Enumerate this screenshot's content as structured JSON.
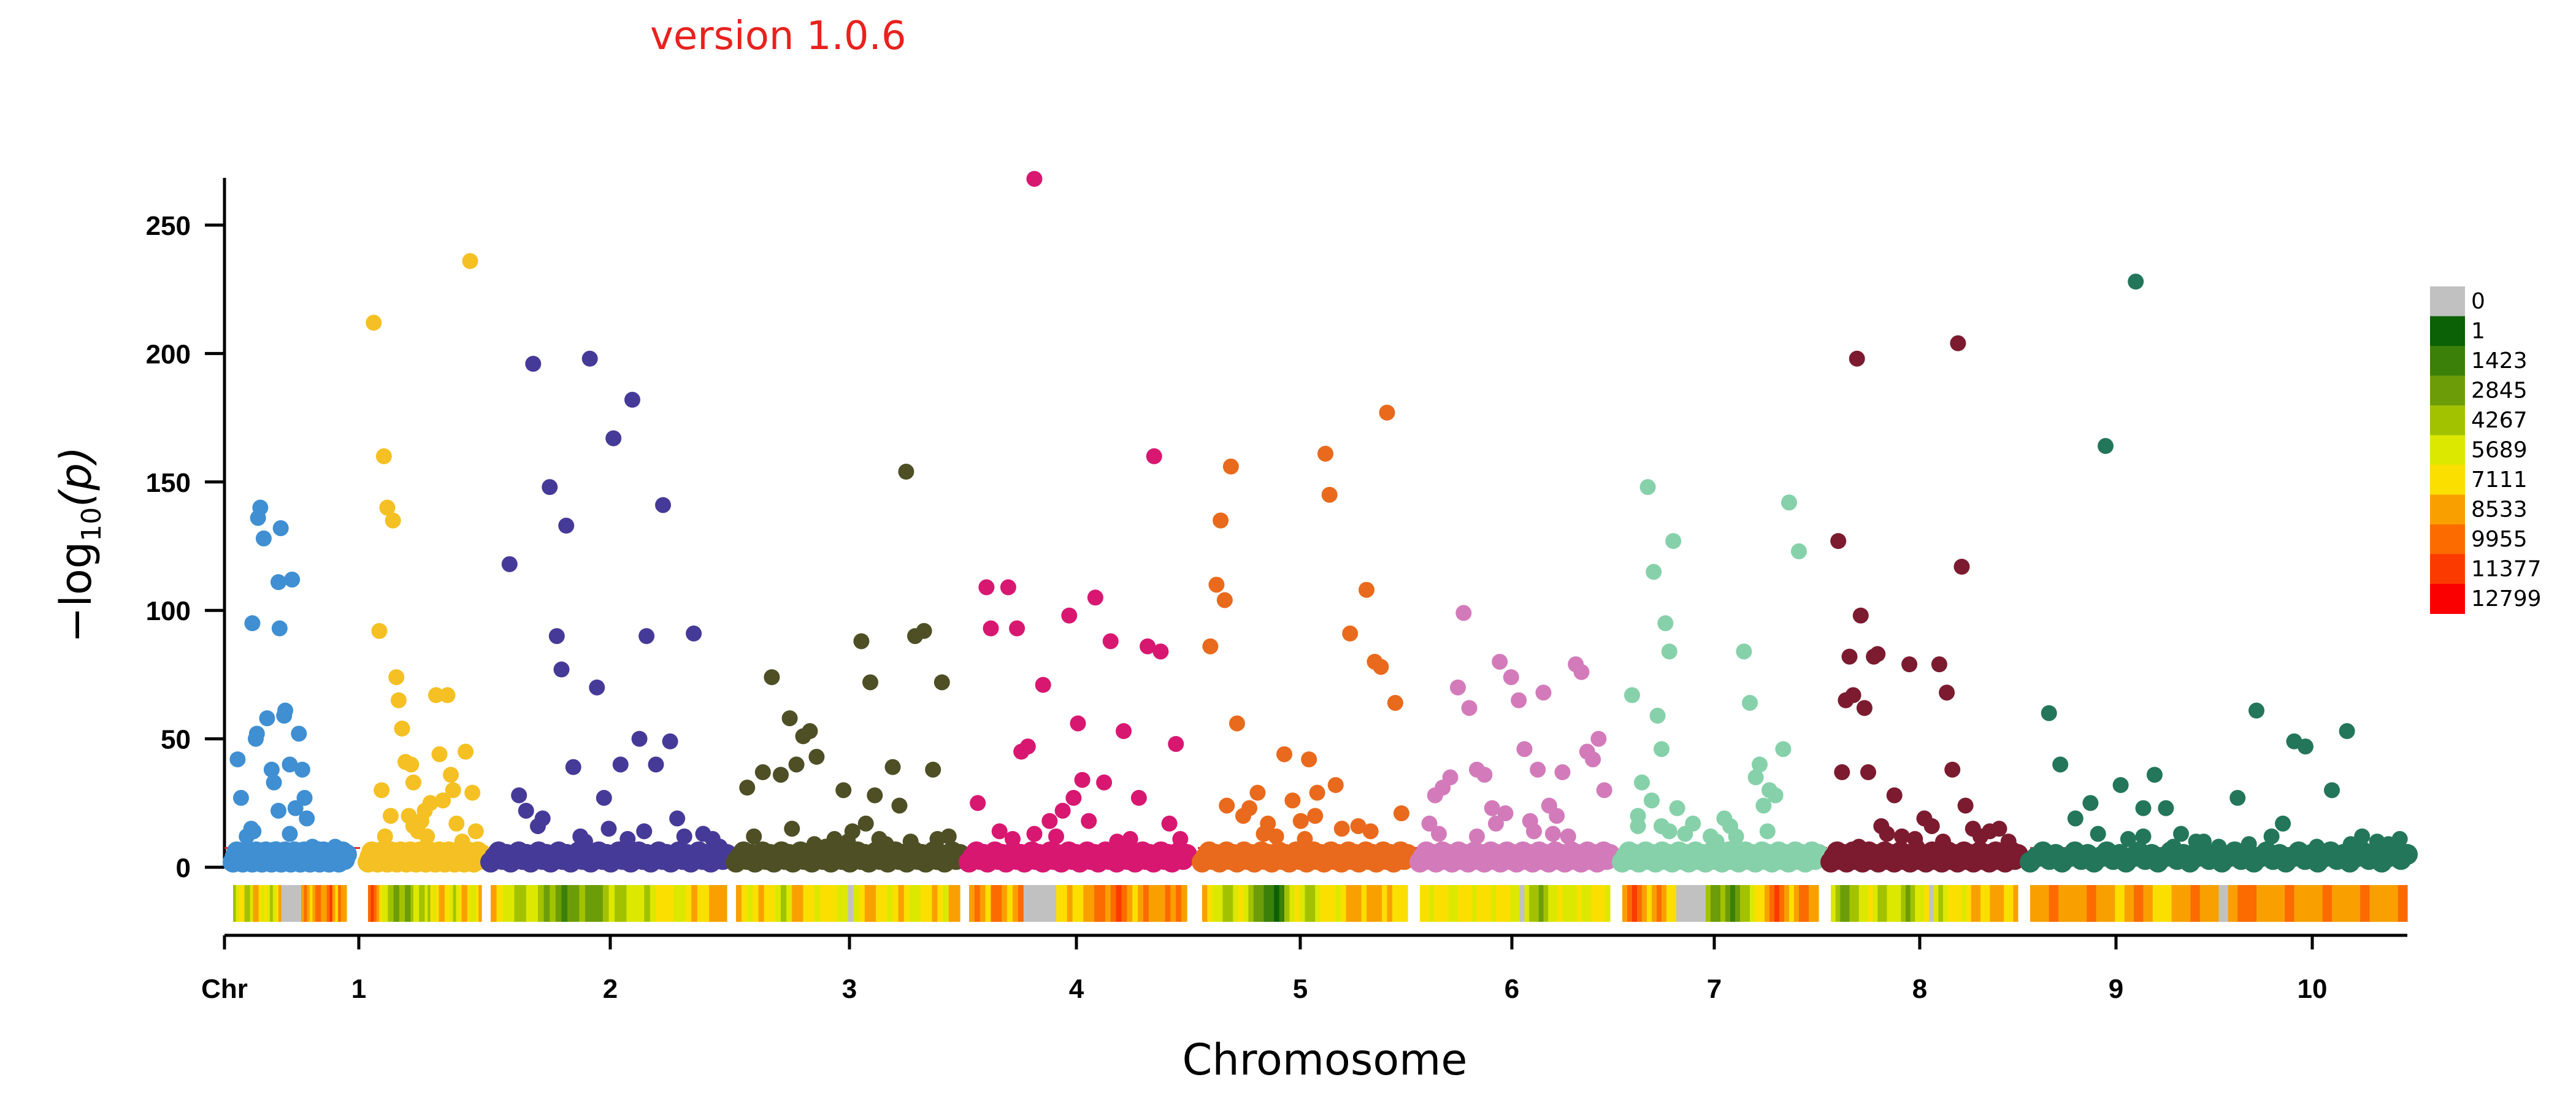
{
  "version_text": "version 1.0.6",
  "chart_data": {
    "type": "scatter",
    "title": "",
    "xlabel": "Chromosome",
    "ylabel_base": "−log",
    "ylabel_sub": "10",
    "ylabel_arg": "(p)",
    "chr_prefix_label": "Chr",
    "ylim": [
      0,
      270
    ],
    "yticks": [
      0,
      50,
      100,
      150,
      200,
      250
    ],
    "threshold": 7.5,
    "chromosomes": [
      "1",
      "2",
      "3",
      "4",
      "5",
      "6",
      "7",
      "8",
      "9",
      "10"
    ],
    "chromosome_spans": [
      [
        0,
        1.0
      ],
      [
        1.0,
        2.0
      ],
      [
        2.0,
        3.0
      ],
      [
        3.0,
        4.0
      ],
      [
        4.0,
        5.0
      ],
      [
        5.0,
        6.0
      ],
      [
        6.0,
        7.0
      ],
      [
        7.0,
        8.0
      ],
      [
        8.0,
        9.0
      ],
      [
        9.0,
        10.0
      ]
    ],
    "chr_colors": [
      "#3f8fd2",
      "#f5c023",
      "#463a98",
      "#4e4f25",
      "#d81771",
      "#e96a1d",
      "#d37bba",
      "#86d1aa",
      "#7c1b2f",
      "#23765a"
    ],
    "series": [
      {
        "chr": "1",
        "x": [
          0.04,
          0.07,
          0.12,
          0.16,
          0.17,
          0.2,
          0.21,
          0.22,
          0.24,
          0.27,
          0.3,
          0.34,
          0.36,
          0.38,
          0.4,
          0.41,
          0.42,
          0.45,
          0.46,
          0.5,
          0.52,
          0.55,
          0.58,
          0.61,
          0.63,
          0.65,
          0.7,
          0.75,
          0.82,
          0.9,
          0.18,
          0.4,
          0.5
        ],
        "y": [
          42,
          27,
          12,
          15,
          95,
          50,
          52,
          136,
          140,
          128,
          58,
          38,
          33,
          7,
          111,
          93,
          132,
          59,
          61,
          40,
          112,
          23,
          52,
          38,
          27,
          19,
          8,
          7,
          6,
          8,
          14,
          22,
          13
        ]
      },
      {
        "chr": "2",
        "x": [
          0.05,
          0.1,
          0.12,
          0.14,
          0.17,
          0.2,
          0.22,
          0.25,
          0.27,
          0.3,
          0.33,
          0.36,
          0.38,
          0.4,
          0.44,
          0.47,
          0.5,
          0.52,
          0.55,
          0.6,
          0.63,
          0.66,
          0.7,
          0.73,
          0.78,
          0.83,
          0.86,
          0.9,
          0.92,
          0.95,
          0.4,
          0.15,
          0.75
        ],
        "y": [
          212,
          92,
          30,
          160,
          140,
          20,
          135,
          74,
          65,
          54,
          41,
          20,
          40,
          33,
          14,
          18,
          22,
          12,
          25,
          67,
          44,
          26,
          67,
          36,
          17,
          10,
          45,
          236,
          29,
          14,
          16,
          12,
          30
        ]
      },
      {
        "chr": "3",
        "x": [
          0.08,
          0.12,
          0.15,
          0.18,
          0.22,
          0.25,
          0.28,
          0.3,
          0.32,
          0.35,
          0.38,
          0.4,
          0.42,
          0.45,
          0.48,
          0.52,
          0.55,
          0.58,
          0.6,
          0.63,
          0.66,
          0.7,
          0.73,
          0.76,
          0.79,
          0.82,
          0.86,
          0.9,
          0.94,
          0.97,
          0.2,
          0.5,
          0.65
        ],
        "y": [
          118,
          28,
          22,
          196,
          19,
          148,
          90,
          77,
          133,
          39,
          12,
          10,
          198,
          70,
          27,
          167,
          40,
          11,
          182,
          50,
          90,
          40,
          141,
          49,
          19,
          12,
          91,
          13,
          11,
          8,
          16,
          15,
          14
        ]
      },
      {
        "chr": "4",
        "x": [
          0.05,
          0.08,
          0.12,
          0.16,
          0.2,
          0.24,
          0.27,
          0.3,
          0.33,
          0.36,
          0.4,
          0.44,
          0.48,
          0.52,
          0.56,
          0.6,
          0.64,
          0.67,
          0.7,
          0.73,
          0.76,
          0.8,
          0.84,
          0.88,
          0.92,
          0.95,
          0.5,
          0.62,
          0.25,
          0.58,
          0.35,
          0.78,
          0.9
        ],
        "y": [
          31,
          12,
          37,
          74,
          36,
          58,
          40,
          51,
          53,
          43,
          8,
          11,
          30,
          14,
          88,
          72,
          11,
          9,
          39,
          24,
          154,
          90,
          92,
          38,
          72,
          12,
          10,
          28,
          15,
          17,
          9,
          10,
          11
        ]
      },
      {
        "chr": "5",
        "x": [
          0.04,
          0.08,
          0.1,
          0.14,
          0.18,
          0.22,
          0.24,
          0.27,
          0.3,
          0.34,
          0.37,
          0.4,
          0.43,
          0.46,
          0.5,
          0.52,
          0.55,
          0.58,
          0.62,
          0.65,
          0.68,
          0.71,
          0.74,
          0.78,
          0.82,
          0.85,
          0.88,
          0.92,
          0.95,
          0.97,
          0.3,
          0.48,
          0.2
        ],
        "y": [
          25,
          109,
          93,
          14,
          109,
          93,
          45,
          47,
          268,
          71,
          18,
          12,
          22,
          98,
          56,
          34,
          18,
          105,
          33,
          88,
          10,
          53,
          11,
          27,
          86,
          160,
          84,
          17,
          48,
          11,
          13,
          27,
          11
        ]
      },
      {
        "chr": "6",
        "x": [
          0.04,
          0.07,
          0.09,
          0.11,
          0.14,
          0.17,
          0.2,
          0.23,
          0.27,
          0.32,
          0.36,
          0.4,
          0.44,
          0.48,
          0.52,
          0.56,
          0.6,
          0.62,
          0.65,
          0.68,
          0.72,
          0.76,
          0.8,
          0.84,
          0.87,
          0.9,
          0.94,
          0.97,
          0.55,
          0.5,
          0.3,
          0.82,
          0.12
        ],
        "y": [
          86,
          110,
          135,
          104,
          156,
          56,
          20,
          23,
          29,
          17,
          12,
          44,
          26,
          18,
          42,
          29,
          161,
          145,
          32,
          15,
          91,
          16,
          108,
          80,
          78,
          177,
          64,
          21,
          20,
          11,
          13,
          14,
          24
        ]
      },
      {
        "chr": "7",
        "x": [
          0.05,
          0.08,
          0.12,
          0.16,
          0.2,
          0.23,
          0.26,
          0.3,
          0.34,
          0.38,
          0.42,
          0.45,
          0.48,
          0.52,
          0.55,
          0.58,
          0.62,
          0.65,
          0.68,
          0.72,
          0.75,
          0.78,
          0.82,
          0.85,
          0.88,
          0.91,
          0.94,
          0.97,
          0.4,
          0.6,
          0.3,
          0.1,
          0.7
        ],
        "y": [
          17,
          28,
          31,
          35,
          70,
          99,
          62,
          38,
          36,
          23,
          80,
          21,
          74,
          65,
          46,
          18,
          38,
          68,
          24,
          20,
          37,
          12,
          79,
          76,
          45,
          42,
          50,
          30,
          17,
          14,
          12,
          13,
          13
        ]
      },
      {
        "chr": "8",
        "x": [
          0.05,
          0.08,
          0.1,
          0.13,
          0.16,
          0.18,
          0.2,
          0.22,
          0.24,
          0.26,
          0.28,
          0.32,
          0.36,
          0.45,
          0.52,
          0.58,
          0.62,
          0.65,
          0.68,
          0.72,
          0.75,
          0.78,
          0.82,
          0.85,
          0.9,
          0.15,
          0.2,
          0.08,
          0.55,
          0.7,
          0.74,
          0.48,
          0.24
        ],
        "y": [
          67,
          16,
          33,
          148,
          115,
          59,
          46,
          95,
          84,
          127,
          23,
          13,
          17,
          12,
          19,
          12,
          84,
          64,
          35,
          24,
          30,
          28,
          46,
          142,
          123,
          26,
          16,
          20,
          16,
          40,
          14,
          10,
          14
        ]
      },
      {
        "chr": "9",
        "x": [
          0.04,
          0.06,
          0.08,
          0.1,
          0.12,
          0.14,
          0.16,
          0.18,
          0.2,
          0.23,
          0.25,
          0.27,
          0.3,
          0.34,
          0.38,
          0.42,
          0.46,
          0.5,
          0.54,
          0.58,
          0.62,
          0.65,
          0.68,
          0.7,
          0.72,
          0.76,
          0.8,
          0.85,
          0.9,
          0.95,
          0.45,
          0.15,
          0.6
        ],
        "y": [
          127,
          37,
          65,
          82,
          67,
          198,
          98,
          62,
          37,
          82,
          83,
          16,
          13,
          28,
          12,
          79,
          8,
          19,
          16,
          79,
          68,
          38,
          204,
          117,
          24,
          15,
          12,
          14,
          15,
          10,
          11,
          8,
          10
        ]
      },
      {
        "chr": "10",
        "x": [
          0.05,
          0.08,
          0.12,
          0.16,
          0.2,
          0.24,
          0.28,
          0.3,
          0.33,
          0.36,
          0.4,
          0.44,
          0.5,
          0.55,
          0.6,
          0.64,
          0.67,
          0.7,
          0.73,
          0.76,
          0.8,
          0.84,
          0.88,
          0.92,
          0.95,
          0.98,
          0.18,
          0.26,
          0.58,
          0.46,
          0.38,
          0.3,
          0.85
        ],
        "y": [
          60,
          40,
          19,
          25,
          164,
          32,
          228,
          23,
          36,
          23,
          13,
          10,
          8,
          27,
          61,
          12,
          17,
          49,
          47,
          8,
          30,
          53,
          12,
          10,
          9,
          11,
          13,
          11,
          9,
          10,
          8,
          12,
          9
        ]
      }
    ],
    "density_bins_per_chr": 40,
    "density_values": [
      [
        5000,
        6200,
        8000,
        7200,
        5300,
        4300,
        6800,
        8600,
        9200,
        7600,
        5900,
        8400,
        7100,
        5000,
        6500,
        8300,
        9000,
        0,
        0,
        0,
        0,
        0,
        0,
        0,
        9800,
        10800,
        8800,
        7800,
        9600,
        10200,
        11000,
        9500,
        8600,
        10300,
        11500,
        9300,
        8100,
        10000,
        9700,
        8800
      ],
      [
        10000,
        12500,
        11200,
        9400,
        8200,
        6500,
        7100,
        5600,
        4700,
        3300,
        4100,
        5400,
        4900,
        3600,
        2900,
        4400,
        5700,
        6900,
        5300,
        4600,
        6000,
        5200,
        7300,
        6400,
        7800,
        8700,
        9300,
        8300,
        7400,
        6400,
        5600,
        6800,
        8100,
        8900,
        8600,
        7600,
        6500,
        5800,
        8100,
        9700
      ],
      [
        9400,
        8500,
        6900,
        5700,
        4600,
        4900,
        5900,
        6800,
        5200,
        3800,
        4300,
        3400,
        2600,
        3100,
        4200,
        4700,
        3500,
        2900,
        3800,
        5100,
        6300,
        5500,
        4400,
        5800,
        7100,
        6400,
        5300,
        6700,
        7700,
        8400,
        7200,
        6100,
        6900,
        8300,
        9100,
        8200,
        7400,
        8800,
        9700,
        8900
      ],
      [
        9000,
        8200,
        6800,
        7900,
        9100,
        8300,
        7200,
        6300,
        5600,
        7100,
        8700,
        9300,
        8000,
        7300,
        6600,
        7800,
        8500,
        7400,
        6500,
        5800,
        0,
        6900,
        7700,
        8800,
        9500,
        8300,
        7600,
        6800,
        8300,
        9000,
        7900,
        7100,
        6400,
        7500,
        8400,
        9100,
        8200,
        7000,
        8600,
        9300
      ],
      [
        9800,
        10900,
        9400,
        8500,
        10300,
        11200,
        9600,
        8200,
        9300,
        10100,
        0,
        0,
        0,
        0,
        0,
        0,
        7300,
        8400,
        9100,
        8200,
        7300,
        8600,
        9800,
        10900,
        10200,
        9400,
        10700,
        11600,
        10300,
        9100,
        8200,
        9900,
        10900,
        9600,
        8700,
        9900,
        10600,
        9400,
        10800,
        9800
      ],
      [
        9300,
        8300,
        7100,
        5900,
        4800,
        5600,
        6900,
        7800,
        6400,
        5100,
        3900,
        3100,
        2300,
        1600,
        1000,
        2800,
        4600,
        6300,
        7700,
        6600,
        5400,
        4700,
        6000,
        7300,
        8100,
        7400,
        6700,
        7900,
        8800,
        9400,
        8600,
        7700,
        8800,
        9700,
        8900,
        8100,
        9200,
        8300,
        7500,
        8000
      ],
      [
        8200,
        7300,
        6500,
        7600,
        8500,
        7800,
        6900,
        6200,
        7400,
        8100,
        7300,
        6600,
        7700,
        8300,
        7600,
        6800,
        7500,
        8400,
        7900,
        7000,
        6300,
        0,
        6200,
        5500,
        4500,
        3700,
        4900,
        5700,
        6600,
        7500,
        6700,
        5900,
        6900,
        7700,
        7100,
        6400,
        7400,
        8100,
        7200,
        6500
      ],
      [
        9200,
        10700,
        12000,
        11000,
        9400,
        8400,
        9800,
        10700,
        9100,
        8300,
        7200,
        0,
        0,
        0,
        0,
        0,
        0,
        4600,
        3300,
        4000,
        5100,
        3700,
        2700,
        3600,
        4600,
        5400,
        6800,
        7500,
        8200,
        9100,
        10100,
        11700,
        10400,
        9200,
        8300,
        9600,
        10700,
        11100,
        9900,
        8800
      ],
      [
        6500,
        5300,
        4100,
        3700,
        4400,
        5100,
        6100,
        6700,
        7300,
        6200,
        5100,
        4700,
        5800,
        6400,
        5700,
        4600,
        3800,
        4900,
        5800,
        6700,
        7600,
        0,
        6100,
        5600,
        6500,
        7400,
        8200,
        7300,
        6600,
        7800,
        8600,
        9200,
        8400,
        7700,
        8900,
        9500,
        8700,
        7900,
        8500,
        9100
      ],
      [
        8600,
        9400,
        10300,
        9500,
        8700,
        9800,
        10700,
        9900,
        9000,
        8300,
        9300,
        10100,
        9400,
        8500,
        7700,
        8800,
        9700,
        10500,
        9600,
        8700,
        0,
        9100,
        10000,
        10800,
        9800,
        8900,
        9900,
        10800,
        9700,
        8800,
        9600,
        10500,
        9400,
        8600,
        9700,
        10600,
        9800,
        8900,
        9400,
        10000
      ]
    ],
    "legend_values": [
      "0",
      "1",
      "1423",
      "2845",
      "4267",
      "5689",
      "7111",
      "8533",
      "9955",
      "11377",
      "12799"
    ],
    "legend_colors": [
      "#c1c1c1",
      "#0b6105",
      "#3a8009",
      "#6c9d09",
      "#a2c200",
      "#dce800",
      "#fbdf00",
      "#f9a000",
      "#fb6b00",
      "#fb3a00",
      "#fb0000"
    ]
  }
}
